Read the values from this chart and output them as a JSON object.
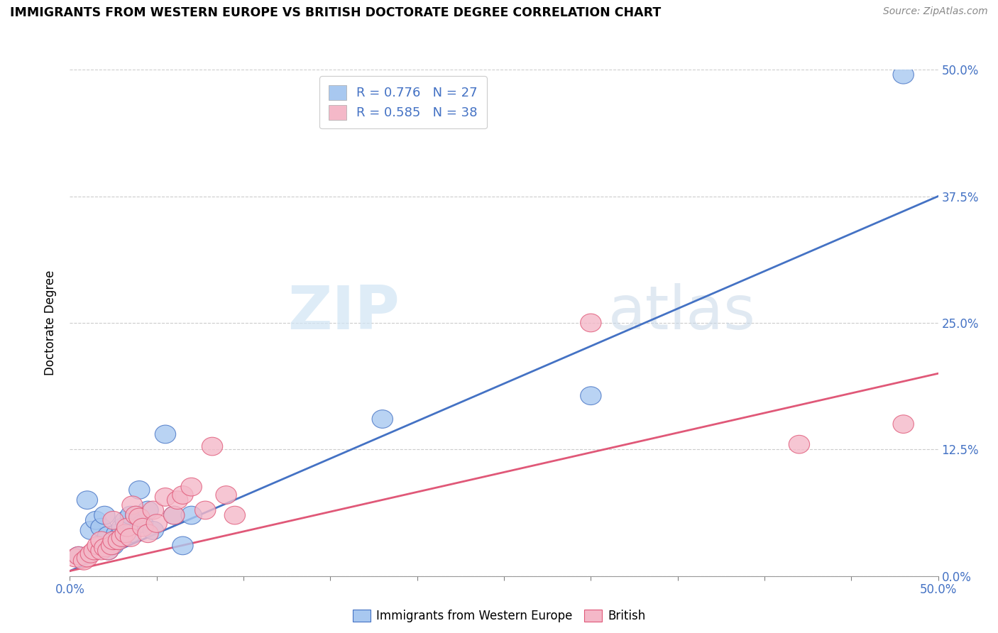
{
  "title": "IMMIGRANTS FROM WESTERN EUROPE VS BRITISH DOCTORATE DEGREE CORRELATION CHART",
  "source": "Source: ZipAtlas.com",
  "ylabel": "Doctorate Degree",
  "legend_label1": "Immigrants from Western Europe",
  "legend_label2": "British",
  "R1": 0.776,
  "N1": 27,
  "R2": 0.585,
  "N2": 38,
  "xlim": [
    0.0,
    0.5
  ],
  "ylim": [
    0.0,
    0.5
  ],
  "x_ticks": [
    0.0,
    0.05,
    0.1,
    0.15,
    0.2,
    0.25,
    0.3,
    0.35,
    0.4,
    0.45,
    0.5
  ],
  "x_tick_labels_show": [
    "0.0%",
    "",
    "",
    "",
    "",
    "",
    "",
    "",
    "",
    "",
    "50.0%"
  ],
  "y_ticks": [
    0.0,
    0.125,
    0.25,
    0.375,
    0.5
  ],
  "y_tick_labels": [
    "0.0%",
    "12.5%",
    "25.0%",
    "37.5%",
    "50.0%"
  ],
  "color_blue": "#A8C8F0",
  "color_pink": "#F4B8C8",
  "line_blue": "#4472C4",
  "line_pink": "#E05878",
  "watermark_zip": "ZIP",
  "watermark_atlas": "atlas",
  "blue_x": [
    0.005,
    0.01,
    0.012,
    0.015,
    0.018,
    0.02,
    0.022,
    0.022,
    0.025,
    0.027,
    0.028,
    0.03,
    0.032,
    0.035,
    0.035,
    0.038,
    0.04,
    0.042,
    0.045,
    0.048,
    0.055,
    0.06,
    0.065,
    0.07,
    0.18,
    0.3,
    0.48
  ],
  "blue_y": [
    0.02,
    0.075,
    0.045,
    0.055,
    0.048,
    0.06,
    0.025,
    0.04,
    0.03,
    0.042,
    0.038,
    0.048,
    0.055,
    0.06,
    0.042,
    0.06,
    0.085,
    0.052,
    0.065,
    0.045,
    0.14,
    0.06,
    0.03,
    0.06,
    0.155,
    0.178,
    0.495
  ],
  "pink_x": [
    0.003,
    0.005,
    0.008,
    0.01,
    0.012,
    0.014,
    0.016,
    0.018,
    0.018,
    0.02,
    0.022,
    0.024,
    0.025,
    0.025,
    0.028,
    0.03,
    0.032,
    0.033,
    0.035,
    0.036,
    0.038,
    0.04,
    0.042,
    0.045,
    0.048,
    0.05,
    0.055,
    0.06,
    0.062,
    0.065,
    0.07,
    0.078,
    0.082,
    0.09,
    0.095,
    0.3,
    0.42,
    0.48
  ],
  "pink_y": [
    0.018,
    0.02,
    0.015,
    0.018,
    0.022,
    0.025,
    0.03,
    0.025,
    0.035,
    0.028,
    0.025,
    0.03,
    0.035,
    0.055,
    0.035,
    0.038,
    0.042,
    0.048,
    0.038,
    0.07,
    0.06,
    0.058,
    0.048,
    0.042,
    0.065,
    0.052,
    0.078,
    0.06,
    0.075,
    0.08,
    0.088,
    0.065,
    0.128,
    0.08,
    0.06,
    0.25,
    0.13,
    0.15
  ],
  "blue_line_x": [
    0.0,
    0.5
  ],
  "blue_line_y": [
    0.005,
    0.375
  ],
  "pink_line_x": [
    0.0,
    0.5
  ],
  "pink_line_y": [
    0.005,
    0.2
  ]
}
